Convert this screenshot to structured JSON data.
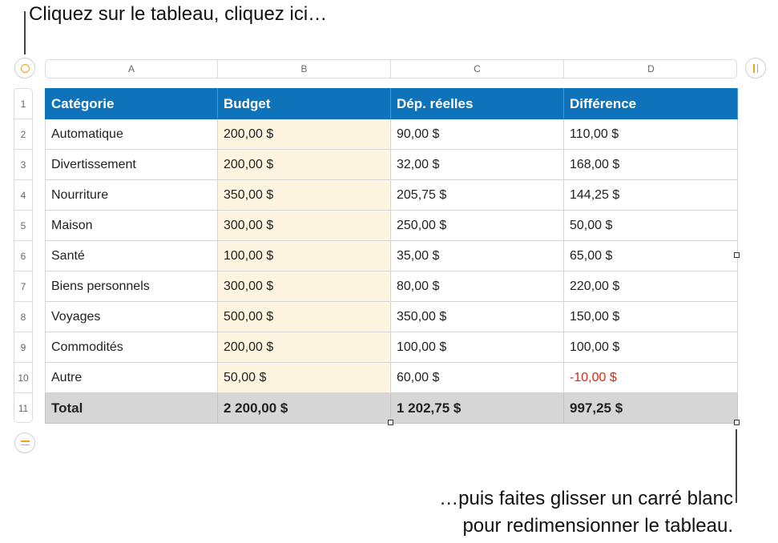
{
  "callouts": {
    "top": "Cliquez sur le tableau, cliquez ici…",
    "bottom_line1": "…puis faites glisser un carré blanc",
    "bottom_line2": "pour redimensionner le tableau."
  },
  "icons": {
    "select_all": "circle-handle-icon",
    "add_column": "double-bar-handle-icon",
    "add_row": "equals-handle-icon"
  },
  "colors": {
    "header_bg": "#0e73bb",
    "budget_bg": "#fdf5df",
    "total_bg": "#d6d6d6",
    "negative_text": "#d92b16",
    "handle_accent": "#f0a01e"
  },
  "columns": [
    "A",
    "B",
    "C",
    "D"
  ],
  "row_numbers": [
    "1",
    "2",
    "3",
    "4",
    "5",
    "6",
    "7",
    "8",
    "9",
    "10",
    "11"
  ],
  "table": {
    "header": [
      "Catégorie",
      "Budget",
      "Dép. réelles",
      "Différence"
    ],
    "rows": [
      [
        "Automatique",
        "200,00 $",
        "90,00 $",
        "110,00 $"
      ],
      [
        "Divertissement",
        "200,00 $",
        "32,00 $",
        "168,00 $"
      ],
      [
        "Nourriture",
        "350,00 $",
        "205,75 $",
        "144,25 $"
      ],
      [
        "Maison",
        "300,00 $",
        "250,00 $",
        "50,00 $"
      ],
      [
        "Santé",
        "100,00 $",
        "35,00 $",
        "65,00 $"
      ],
      [
        "Biens personnels",
        "300,00 $",
        "80,00 $",
        "220,00 $"
      ],
      [
        "Voyages",
        "500,00 $",
        "350,00 $",
        "150,00 $"
      ],
      [
        "Commodités",
        "200,00 $",
        "100,00 $",
        "100,00 $"
      ],
      [
        "Autre",
        "50,00 $",
        "60,00 $",
        "-10,00 $"
      ]
    ],
    "total": [
      "Total",
      "2 200,00 $",
      "1 202,75 $",
      "997,25 $"
    ]
  }
}
